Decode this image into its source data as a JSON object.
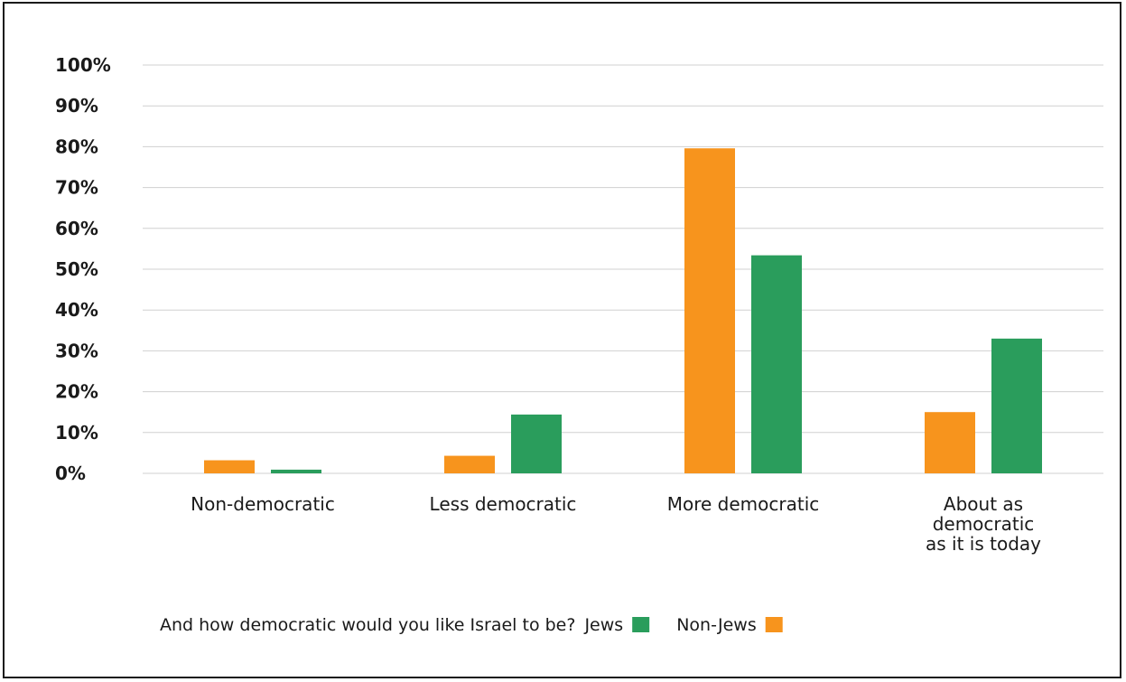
{
  "chart_data": {
    "type": "bar",
    "title": "",
    "xlabel": "",
    "ylabel": "",
    "categories": [
      "Non-democratic",
      "Less democratic",
      "More democratic",
      "About as democratic as it is today"
    ],
    "category_lines": [
      [
        "Non-democratic"
      ],
      [
        "Less democratic"
      ],
      [
        "More democratic"
      ],
      [
        "About as",
        "democratic",
        "as it is today"
      ]
    ],
    "ylim": [
      0,
      100
    ],
    "yticks": [
      0,
      10,
      20,
      30,
      40,
      50,
      60,
      70,
      80,
      90,
      100
    ],
    "ytick_labels": [
      "0%",
      "10%",
      "20%",
      "30%",
      "40%",
      "50%",
      "60%",
      "70%",
      "80%",
      "90%",
      "100%"
    ],
    "grid": true,
    "series": [
      {
        "name": "Non-Jews",
        "color": "#f7941d",
        "values": [
          3.2,
          4.3,
          79.6,
          15
        ]
      },
      {
        "name": "Jews",
        "color": "#2a9d5c",
        "values": [
          0.9,
          14.4,
          53.4,
          33
        ]
      }
    ],
    "legend": {
      "placement": "bottom",
      "prefix": "And how democratic would you like Israel to be?",
      "entries": [
        {
          "label": "Jews",
          "color": "#2a9d5c"
        },
        {
          "label": "Non-Jews",
          "color": "#f7941d"
        }
      ]
    }
  }
}
